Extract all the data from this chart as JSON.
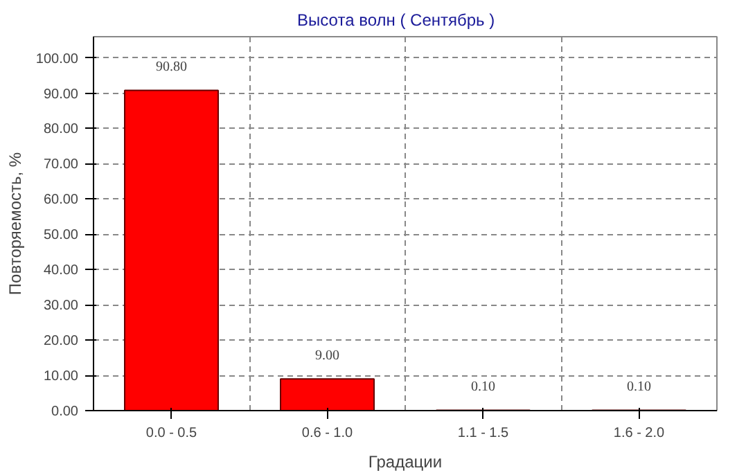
{
  "chart_data": {
    "type": "bar",
    "title": "Высота волн     ( Сентябрь )",
    "xlabel": "Градации",
    "ylabel": "Повторяемость, %",
    "categories": [
      "0.0 - 0.5",
      "0.6 - 1.0",
      "1.1 - 1.5",
      "1.6 - 2.0"
    ],
    "values": [
      90.8,
      9.0,
      0.1,
      0.1
    ],
    "color": "#ff0000",
    "value_labels": [
      "90.80",
      "9.00",
      "0.10",
      "0.10"
    ],
    "ylim": [
      0,
      106
    ],
    "yticks": [
      {
        "value": 0,
        "label": "0.00"
      },
      {
        "value": 10,
        "label": "10.00"
      },
      {
        "value": 20,
        "label": "20.00"
      },
      {
        "value": 30,
        "label": "30.00"
      },
      {
        "value": 40,
        "label": "40.00"
      },
      {
        "value": 50,
        "label": "50.00"
      },
      {
        "value": 60,
        "label": "60.00"
      },
      {
        "value": 70,
        "label": "70.00"
      },
      {
        "value": 80,
        "label": "80.00"
      },
      {
        "value": 90,
        "label": "90.00"
      },
      {
        "value": 100,
        "label": "100.00"
      }
    ],
    "grid": true
  }
}
